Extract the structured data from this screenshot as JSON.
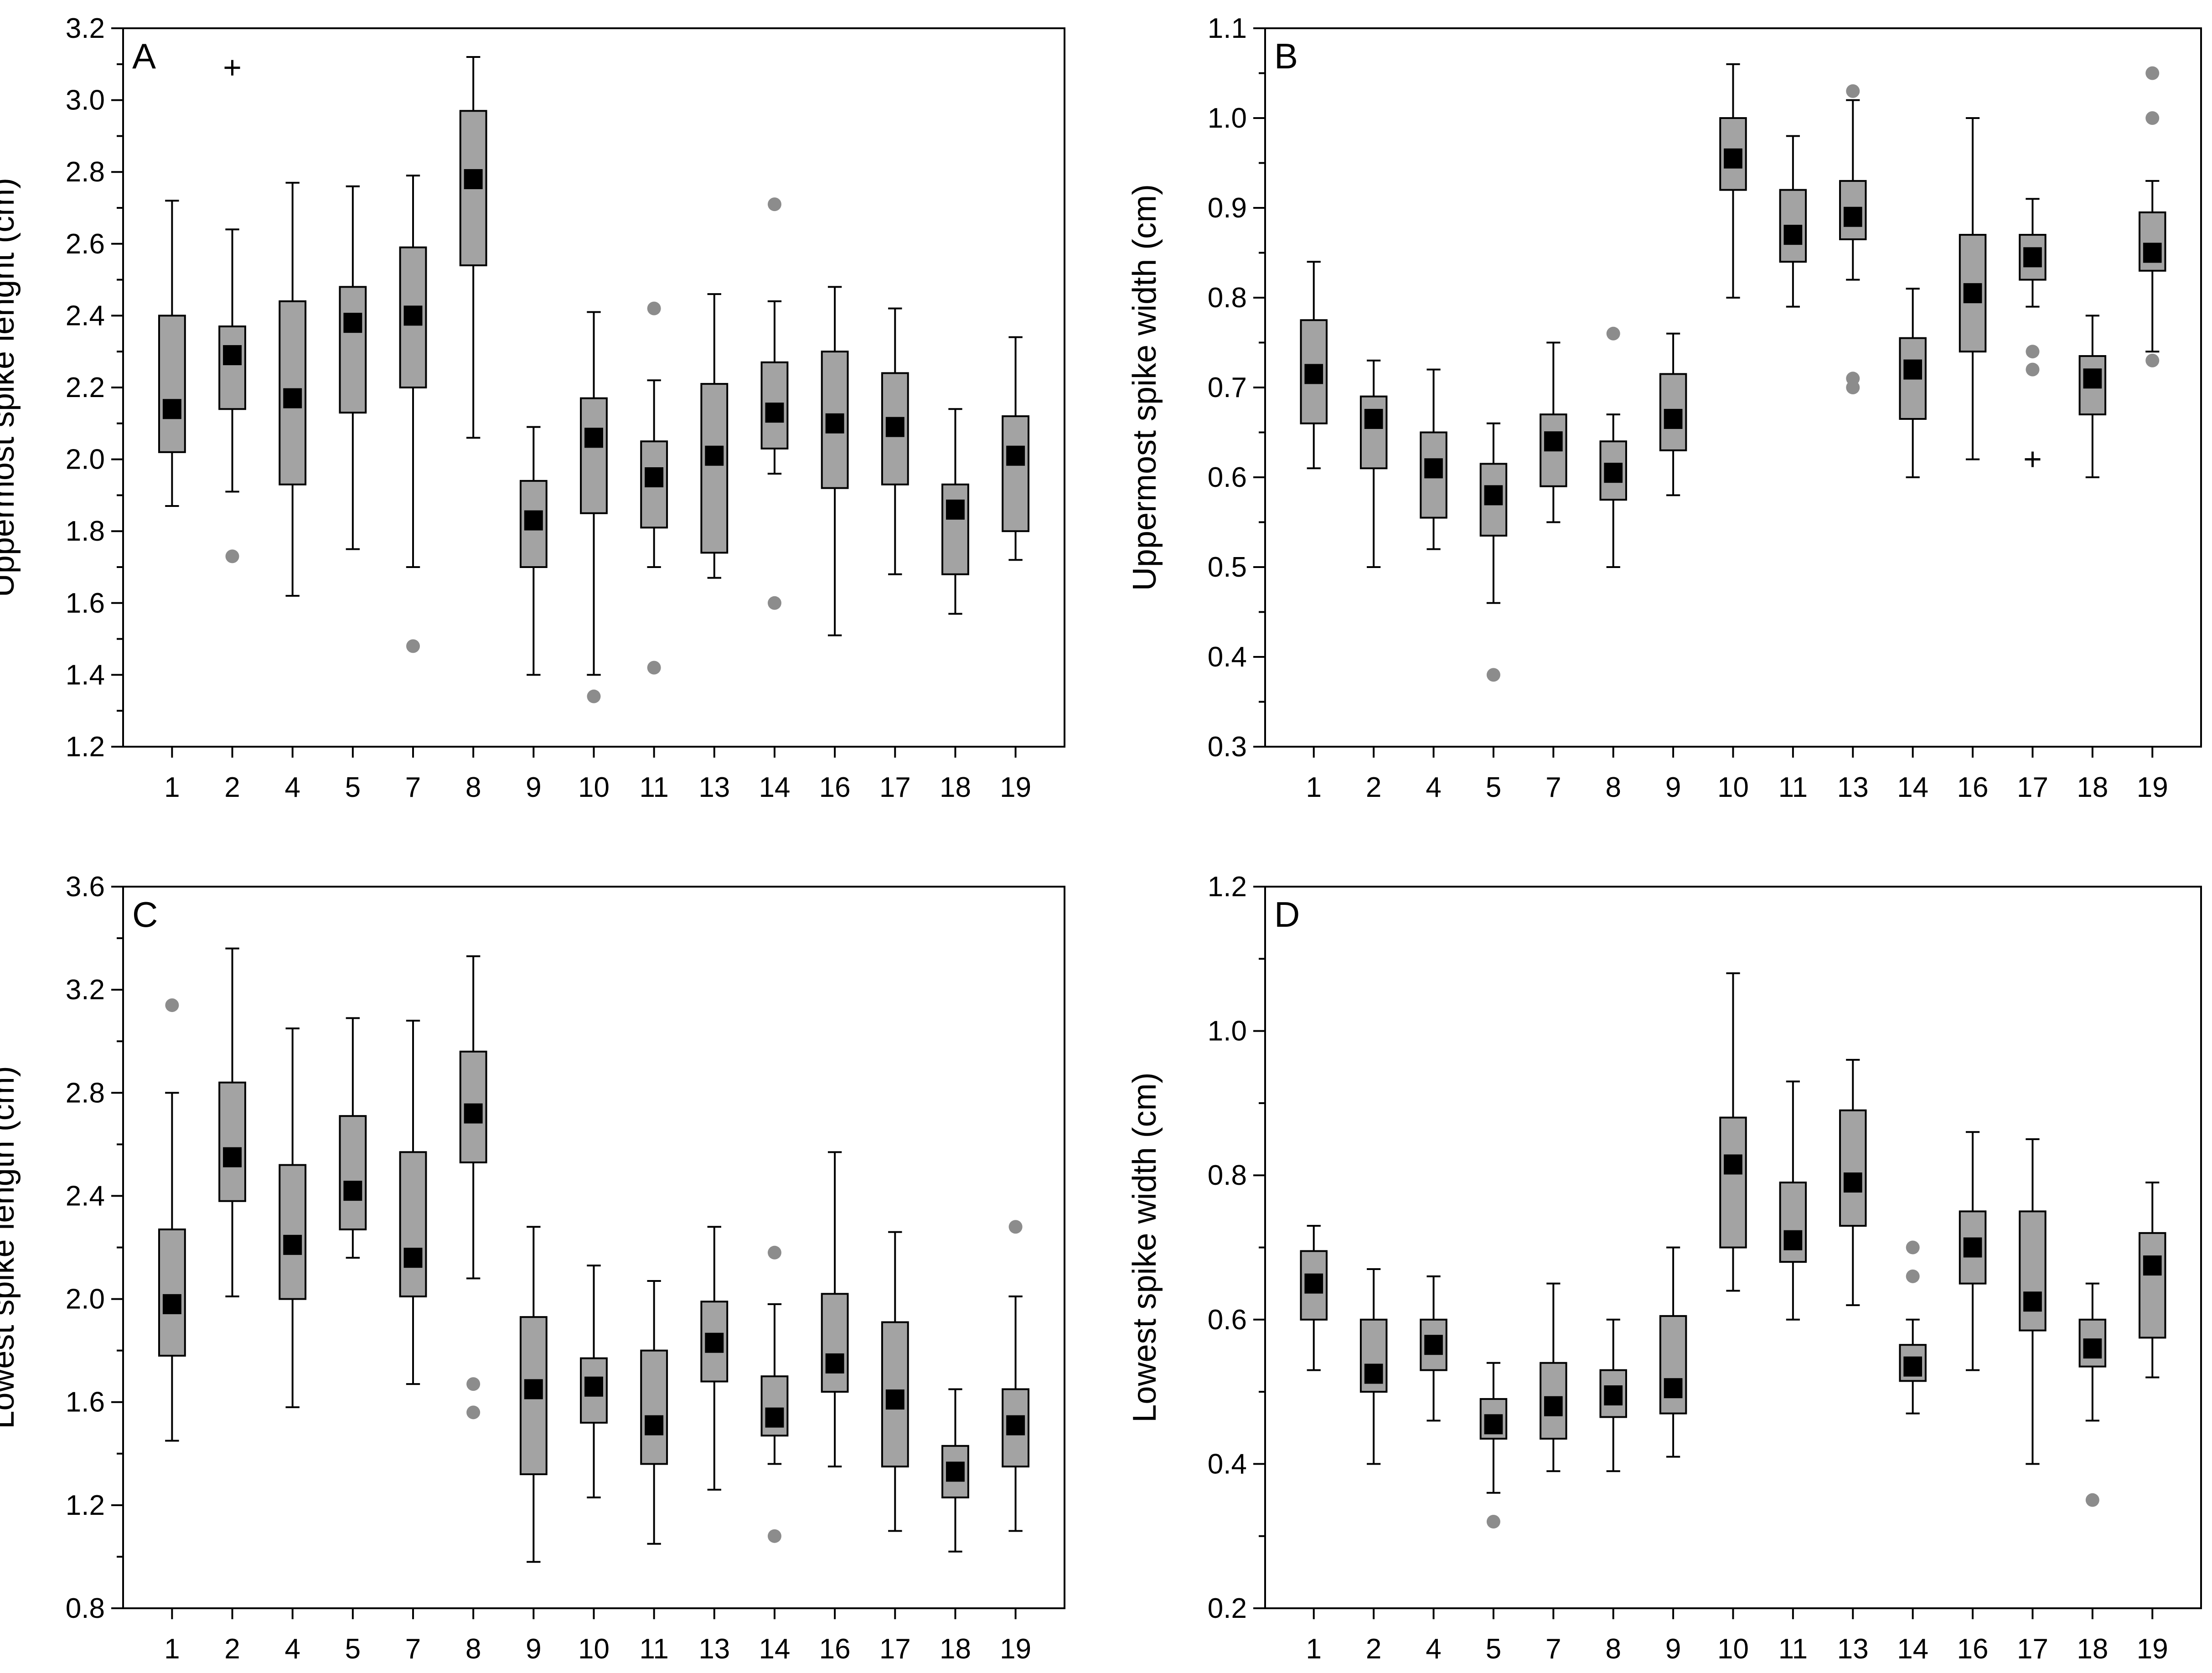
{
  "chart_data": [
    {
      "type": "box",
      "panel": "A",
      "ylabel": "Uppermost spike lenght (cm)",
      "xlabel": "",
      "ylim": [
        1.2,
        3.2
      ],
      "yticks": [
        "1.2",
        "1.4",
        "1.6",
        "1.8",
        "2.0",
        "2.2",
        "2.4",
        "2.6",
        "2.8",
        "3.0",
        "3.2"
      ],
      "categories": [
        "1",
        "2",
        "4",
        "5",
        "7",
        "8",
        "9",
        "10",
        "11",
        "13",
        "14",
        "16",
        "17",
        "18",
        "19"
      ],
      "boxes": [
        {
          "q1": 2.02,
          "q3": 2.4,
          "median": 2.14,
          "min": 1.87,
          "max": 2.72,
          "outliers": [],
          "extremes": []
        },
        {
          "q1": 2.14,
          "q3": 2.37,
          "median": 2.29,
          "min": 1.91,
          "max": 2.64,
          "outliers": [
            1.73
          ],
          "extremes": [
            3.09
          ]
        },
        {
          "q1": 1.93,
          "q3": 2.44,
          "median": 2.17,
          "min": 1.62,
          "max": 2.77,
          "outliers": [],
          "extremes": []
        },
        {
          "q1": 2.13,
          "q3": 2.48,
          "median": 2.38,
          "min": 1.75,
          "max": 2.76,
          "outliers": [],
          "extremes": []
        },
        {
          "q1": 2.2,
          "q3": 2.59,
          "median": 2.4,
          "min": 1.7,
          "max": 2.79,
          "outliers": [
            1.48
          ],
          "extremes": []
        },
        {
          "q1": 2.54,
          "q3": 2.97,
          "median": 2.78,
          "min": 2.06,
          "max": 3.12,
          "outliers": [],
          "extremes": []
        },
        {
          "q1": 1.7,
          "q3": 1.94,
          "median": 1.83,
          "min": 1.4,
          "max": 2.09,
          "outliers": [],
          "extremes": []
        },
        {
          "q1": 1.85,
          "q3": 2.17,
          "median": 2.06,
          "min": 1.4,
          "max": 2.41,
          "outliers": [
            1.34
          ],
          "extremes": []
        },
        {
          "q1": 1.81,
          "q3": 2.05,
          "median": 1.95,
          "min": 1.7,
          "max": 2.22,
          "outliers": [
            2.42,
            1.42
          ],
          "extremes": []
        },
        {
          "q1": 1.74,
          "q3": 2.21,
          "median": 2.01,
          "min": 1.67,
          "max": 2.46,
          "outliers": [],
          "extremes": []
        },
        {
          "q1": 2.03,
          "q3": 2.27,
          "median": 2.13,
          "min": 1.96,
          "max": 2.44,
          "outliers": [
            2.71,
            1.6
          ],
          "extremes": []
        },
        {
          "q1": 1.92,
          "q3": 2.3,
          "median": 2.1,
          "min": 1.51,
          "max": 2.48,
          "outliers": [],
          "extremes": []
        },
        {
          "q1": 1.93,
          "q3": 2.24,
          "median": 2.09,
          "min": 1.68,
          "max": 2.42,
          "outliers": [],
          "extremes": []
        },
        {
          "q1": 1.68,
          "q3": 1.93,
          "median": 1.86,
          "min": 1.57,
          "max": 2.14,
          "outliers": [],
          "extremes": []
        },
        {
          "q1": 1.8,
          "q3": 2.12,
          "median": 2.01,
          "min": 1.72,
          "max": 2.34,
          "outliers": [],
          "extremes": []
        }
      ]
    },
    {
      "type": "box",
      "panel": "B",
      "ylabel": "Uppermost spike width (cm)",
      "xlabel": "",
      "ylim": [
        0.3,
        1.1
      ],
      "yticks": [
        "0.3",
        "0.4",
        "0.5",
        "0.6",
        "0.7",
        "0.8",
        "0.9",
        "1.0",
        "1.1"
      ],
      "categories": [
        "1",
        "2",
        "4",
        "5",
        "7",
        "8",
        "9",
        "10",
        "11",
        "13",
        "14",
        "16",
        "17",
        "18",
        "19"
      ],
      "boxes": [
        {
          "q1": 0.66,
          "q3": 0.775,
          "median": 0.715,
          "min": 0.61,
          "max": 0.84,
          "outliers": [],
          "extremes": []
        },
        {
          "q1": 0.61,
          "q3": 0.69,
          "median": 0.665,
          "min": 0.5,
          "max": 0.73,
          "outliers": [],
          "extremes": []
        },
        {
          "q1": 0.555,
          "q3": 0.65,
          "median": 0.61,
          "min": 0.52,
          "max": 0.72,
          "outliers": [],
          "extremes": []
        },
        {
          "q1": 0.535,
          "q3": 0.615,
          "median": 0.58,
          "min": 0.46,
          "max": 0.66,
          "outliers": [
            0.38
          ],
          "extremes": []
        },
        {
          "q1": 0.59,
          "q3": 0.67,
          "median": 0.64,
          "min": 0.55,
          "max": 0.75,
          "outliers": [],
          "extremes": []
        },
        {
          "q1": 0.575,
          "q3": 0.64,
          "median": 0.605,
          "min": 0.5,
          "max": 0.67,
          "outliers": [
            0.76
          ],
          "extremes": []
        },
        {
          "q1": 0.63,
          "q3": 0.715,
          "median": 0.665,
          "min": 0.58,
          "max": 0.76,
          "outliers": [],
          "extremes": []
        },
        {
          "q1": 0.92,
          "q3": 1.0,
          "median": 0.955,
          "min": 0.8,
          "max": 1.06,
          "outliers": [],
          "extremes": []
        },
        {
          "q1": 0.84,
          "q3": 0.92,
          "median": 0.87,
          "min": 0.79,
          "max": 0.98,
          "outliers": [],
          "extremes": []
        },
        {
          "q1": 0.865,
          "q3": 0.93,
          "median": 0.89,
          "min": 0.82,
          "max": 1.02,
          "outliers": [
            1.03,
            0.71,
            0.7
          ],
          "extremes": []
        },
        {
          "q1": 0.665,
          "q3": 0.755,
          "median": 0.72,
          "min": 0.6,
          "max": 0.81,
          "outliers": [],
          "extremes": []
        },
        {
          "q1": 0.74,
          "q3": 0.87,
          "median": 0.805,
          "min": 0.62,
          "max": 1.0,
          "outliers": [],
          "extremes": []
        },
        {
          "q1": 0.82,
          "q3": 0.87,
          "median": 0.845,
          "min": 0.79,
          "max": 0.91,
          "outliers": [
            0.74,
            0.72
          ],
          "extremes": [
            0.62
          ]
        },
        {
          "q1": 0.67,
          "q3": 0.735,
          "median": 0.71,
          "min": 0.6,
          "max": 0.78,
          "outliers": [],
          "extremes": []
        },
        {
          "q1": 0.83,
          "q3": 0.895,
          "median": 0.85,
          "min": 0.74,
          "max": 0.93,
          "outliers": [
            1.05,
            1.0,
            0.73
          ],
          "extremes": []
        }
      ]
    },
    {
      "type": "box",
      "panel": "C",
      "ylabel": "Lowest spike length (cm)",
      "xlabel": "",
      "ylim": [
        0.8,
        3.6
      ],
      "yticks": [
        "0.8",
        "1.2",
        "1.6",
        "2.0",
        "2.4",
        "2.8",
        "3.2",
        "3.6"
      ],
      "categories": [
        "1",
        "2",
        "4",
        "5",
        "7",
        "8",
        "9",
        "10",
        "11",
        "13",
        "14",
        "16",
        "17",
        "18",
        "19"
      ],
      "boxes": [
        {
          "q1": 1.78,
          "q3": 2.27,
          "median": 1.98,
          "min": 1.45,
          "max": 2.8,
          "outliers": [
            3.14
          ],
          "extremes": []
        },
        {
          "q1": 2.38,
          "q3": 2.84,
          "median": 2.55,
          "min": 2.01,
          "max": 3.36,
          "outliers": [],
          "extremes": []
        },
        {
          "q1": 2.0,
          "q3": 2.52,
          "median": 2.21,
          "min": 1.58,
          "max": 3.05,
          "outliers": [],
          "extremes": []
        },
        {
          "q1": 2.27,
          "q3": 2.71,
          "median": 2.42,
          "min": 2.16,
          "max": 3.09,
          "outliers": [],
          "extremes": []
        },
        {
          "q1": 2.01,
          "q3": 2.57,
          "median": 2.16,
          "min": 1.67,
          "max": 3.08,
          "outliers": [],
          "extremes": []
        },
        {
          "q1": 2.53,
          "q3": 2.96,
          "median": 2.72,
          "min": 2.08,
          "max": 3.33,
          "outliers": [
            1.67,
            1.56
          ],
          "extremes": []
        },
        {
          "q1": 1.32,
          "q3": 1.93,
          "median": 1.65,
          "min": 0.98,
          "max": 2.28,
          "outliers": [],
          "extremes": []
        },
        {
          "q1": 1.52,
          "q3": 1.77,
          "median": 1.66,
          "min": 1.23,
          "max": 2.13,
          "outliers": [],
          "extremes": []
        },
        {
          "q1": 1.36,
          "q3": 1.8,
          "median": 1.51,
          "min": 1.05,
          "max": 2.07,
          "outliers": [],
          "extremes": []
        },
        {
          "q1": 1.68,
          "q3": 1.99,
          "median": 1.83,
          "min": 1.26,
          "max": 2.28,
          "outliers": [],
          "extremes": []
        },
        {
          "q1": 1.47,
          "q3": 1.7,
          "median": 1.54,
          "min": 1.36,
          "max": 1.98,
          "outliers": [
            2.18,
            1.08
          ],
          "extremes": []
        },
        {
          "q1": 1.64,
          "q3": 2.02,
          "median": 1.75,
          "min": 1.35,
          "max": 2.57,
          "outliers": [],
          "extremes": []
        },
        {
          "q1": 1.35,
          "q3": 1.91,
          "median": 1.61,
          "min": 1.1,
          "max": 2.26,
          "outliers": [],
          "extremes": []
        },
        {
          "q1": 1.23,
          "q3": 1.43,
          "median": 1.33,
          "min": 1.02,
          "max": 1.65,
          "outliers": [],
          "extremes": []
        },
        {
          "q1": 1.35,
          "q3": 1.65,
          "median": 1.51,
          "min": 1.1,
          "max": 2.01,
          "outliers": [
            2.28
          ],
          "extremes": []
        }
      ]
    },
    {
      "type": "box",
      "panel": "D",
      "ylabel": "Lowest spike width (cm)",
      "xlabel": "",
      "ylim": [
        0.2,
        1.2
      ],
      "yticks": [
        "0.2",
        "0.4",
        "0.6",
        "0.8",
        "1.0",
        "1.2"
      ],
      "categories": [
        "1",
        "2",
        "4",
        "5",
        "7",
        "8",
        "9",
        "10",
        "11",
        "13",
        "14",
        "16",
        "17",
        "18",
        "19"
      ],
      "boxes": [
        {
          "q1": 0.6,
          "q3": 0.695,
          "median": 0.65,
          "min": 0.53,
          "max": 0.73,
          "outliers": [],
          "extremes": []
        },
        {
          "q1": 0.5,
          "q3": 0.6,
          "median": 0.525,
          "min": 0.4,
          "max": 0.67,
          "outliers": [],
          "extremes": []
        },
        {
          "q1": 0.53,
          "q3": 0.6,
          "median": 0.565,
          "min": 0.46,
          "max": 0.66,
          "outliers": [],
          "extremes": []
        },
        {
          "q1": 0.435,
          "q3": 0.49,
          "median": 0.455,
          "min": 0.36,
          "max": 0.54,
          "outliers": [
            0.32
          ],
          "extremes": []
        },
        {
          "q1": 0.435,
          "q3": 0.54,
          "median": 0.48,
          "min": 0.39,
          "max": 0.65,
          "outliers": [],
          "extremes": []
        },
        {
          "q1": 0.465,
          "q3": 0.53,
          "median": 0.495,
          "min": 0.39,
          "max": 0.6,
          "outliers": [],
          "extremes": []
        },
        {
          "q1": 0.47,
          "q3": 0.605,
          "median": 0.505,
          "min": 0.41,
          "max": 0.7,
          "outliers": [],
          "extremes": []
        },
        {
          "q1": 0.7,
          "q3": 0.88,
          "median": 0.815,
          "min": 0.64,
          "max": 1.08,
          "outliers": [],
          "extremes": []
        },
        {
          "q1": 0.68,
          "q3": 0.79,
          "median": 0.71,
          "min": 0.6,
          "max": 0.93,
          "outliers": [],
          "extremes": []
        },
        {
          "q1": 0.73,
          "q3": 0.89,
          "median": 0.79,
          "min": 0.62,
          "max": 0.96,
          "outliers": [],
          "extremes": []
        },
        {
          "q1": 0.515,
          "q3": 0.565,
          "median": 0.535,
          "min": 0.47,
          "max": 0.6,
          "outliers": [
            0.7,
            0.66
          ],
          "extremes": []
        },
        {
          "q1": 0.65,
          "q3": 0.75,
          "median": 0.7,
          "min": 0.53,
          "max": 0.86,
          "outliers": [],
          "extremes": []
        },
        {
          "q1": 0.585,
          "q3": 0.75,
          "median": 0.625,
          "min": 0.4,
          "max": 0.85,
          "outliers": [],
          "extremes": []
        },
        {
          "q1": 0.535,
          "q3": 0.6,
          "median": 0.56,
          "min": 0.46,
          "max": 0.65,
          "outliers": [
            0.35
          ],
          "extremes": []
        },
        {
          "q1": 0.575,
          "q3": 0.72,
          "median": 0.675,
          "min": 0.52,
          "max": 0.79,
          "outliers": [],
          "extremes": []
        }
      ]
    }
  ],
  "colors": {
    "box_fill": "#a3a3a3",
    "median_marker": "#000000",
    "outlier": "#8c8c8c",
    "axis": "#000000"
  }
}
